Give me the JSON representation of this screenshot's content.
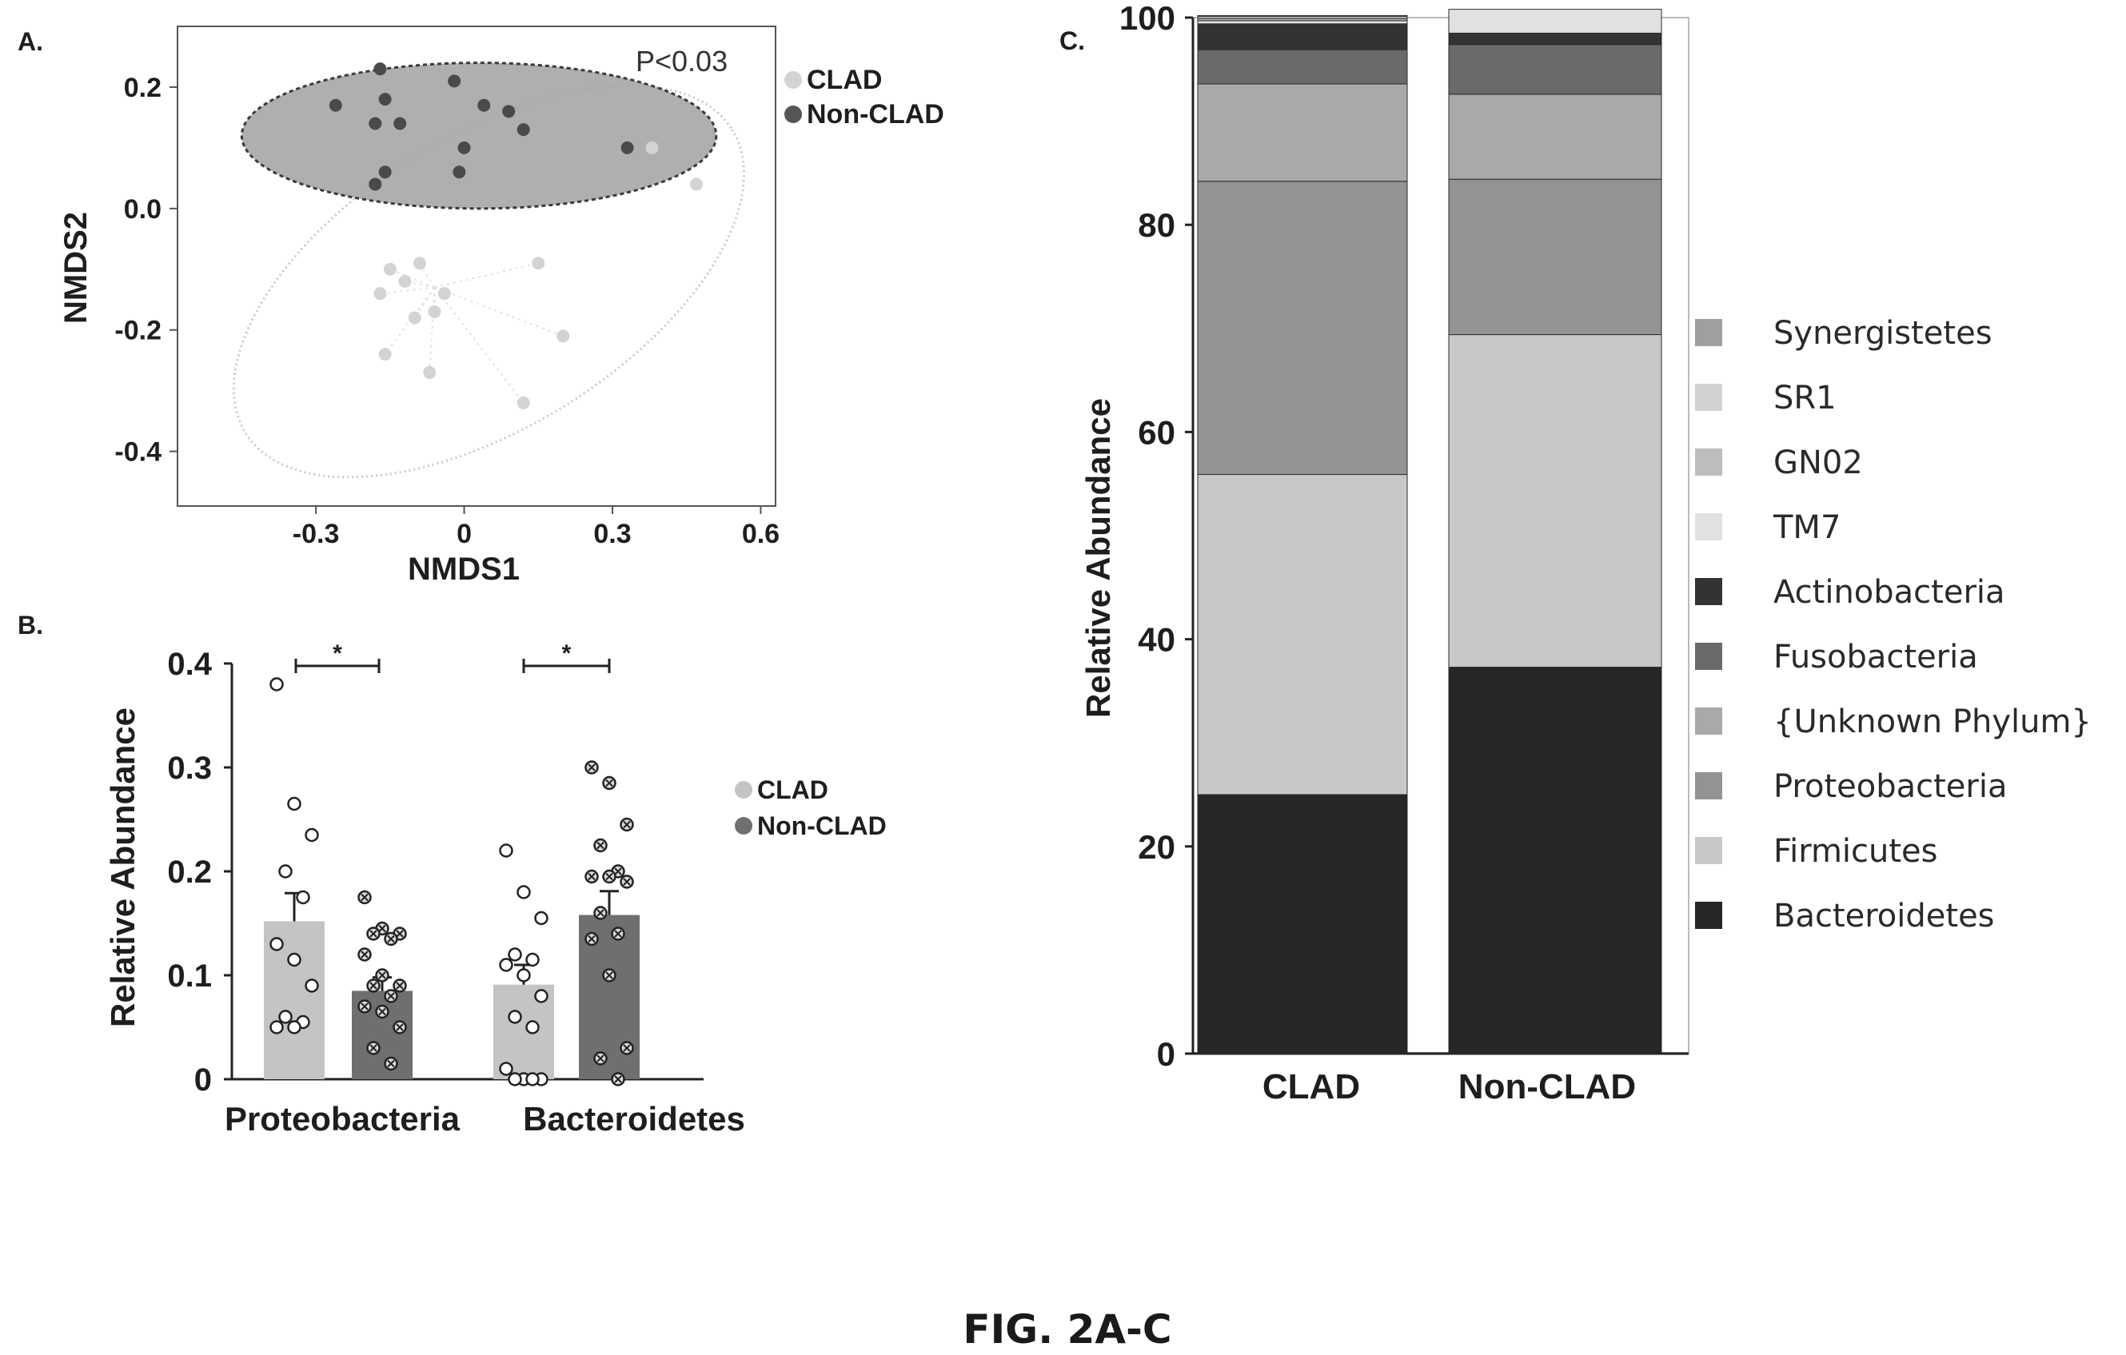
{
  "figure_caption": "FIG. 2A-C",
  "colors": {
    "clad_light": "#d3d3d3",
    "non_clad_dark": "#555555",
    "bar_clad": "#c4c4c4",
    "bar_non_clad": "#6f6f6f",
    "axis": "#222222",
    "background": "#ffffff"
  },
  "chart_data": [
    {
      "panel_label": "A.",
      "type": "scatter",
      "xlabel": "NMDS1",
      "ylabel": "NMDS2",
      "xticks": [
        "-0.3",
        "0",
        "0.3",
        "0.6"
      ],
      "yticks": [
        "0.2",
        "0.0",
        "-0.2",
        "-0.4"
      ],
      "xlim": [
        -0.58,
        0.63
      ],
      "ylim": [
        -0.49,
        0.3
      ],
      "annotation": "P<0.03",
      "legend": [
        "CLAD",
        "Non-CLAD"
      ],
      "legend_position": "top-right",
      "series": [
        {
          "name": "CLAD",
          "ellipse": {
            "center": [
              0.05,
              -0.12
            ],
            "rx": 0.58,
            "ry": 0.24,
            "angle_deg": -32
          },
          "centroid": [
            -0.06,
            -0.13
          ],
          "points": [
            [
              -0.15,
              -0.1
            ],
            [
              -0.12,
              -0.12
            ],
            [
              -0.17,
              -0.14
            ],
            [
              -0.09,
              -0.09
            ],
            [
              -0.04,
              -0.14
            ],
            [
              -0.06,
              -0.17
            ],
            [
              -0.1,
              -0.18
            ],
            [
              -0.16,
              -0.24
            ],
            [
              -0.07,
              -0.27
            ],
            [
              0.15,
              -0.09
            ],
            [
              0.2,
              -0.21
            ],
            [
              0.12,
              -0.32
            ],
            [
              0.38,
              0.1
            ],
            [
              0.47,
              0.04
            ]
          ]
        },
        {
          "name": "Non-CLAD",
          "ellipse": {
            "center": [
              0.03,
              0.12
            ],
            "rx": 0.48,
            "ry": 0.12,
            "angle_deg": 0
          },
          "points": [
            [
              -0.17,
              0.23
            ],
            [
              -0.26,
              0.17
            ],
            [
              -0.16,
              0.18
            ],
            [
              -0.13,
              0.14
            ],
            [
              -0.18,
              0.14
            ],
            [
              -0.02,
              0.21
            ],
            [
              0.04,
              0.17
            ],
            [
              0.09,
              0.16
            ],
            [
              0.12,
              0.13
            ],
            [
              0.0,
              0.1
            ],
            [
              -0.16,
              0.06
            ],
            [
              -0.18,
              0.04
            ],
            [
              -0.01,
              0.06
            ],
            [
              0.33,
              0.1
            ]
          ]
        }
      ]
    },
    {
      "panel_label": "B.",
      "type": "bar",
      "ylabel": "Relative Abundance",
      "categories": [
        "Proteobacteria",
        "Bacteroidetes"
      ],
      "yticks": [
        "0",
        "0.1",
        "0.2",
        "0.3",
        "0.4"
      ],
      "ylim": [
        0,
        0.4
      ],
      "legend": [
        "CLAD",
        "Non-CLAD"
      ],
      "legend_position": "right",
      "significance": [
        "*",
        "*"
      ],
      "series": [
        {
          "name": "CLAD",
          "values": [
            0.152,
            0.091
          ],
          "errors": [
            0.027,
            0.019
          ],
          "points": [
            [
              0.38,
              0.265,
              0.235,
              0.2,
              0.175,
              0.13,
              0.115,
              0.09,
              0.06,
              0.055,
              0.05,
              0.05
            ],
            [
              0.22,
              0.18,
              0.155,
              0.12,
              0.115,
              0.11,
              0.1,
              0.08,
              0.06,
              0.05,
              0.01,
              0.0,
              0.0,
              0.0,
              0.0
            ]
          ]
        },
        {
          "name": "Non-CLAD",
          "values": [
            0.085,
            0.158
          ],
          "errors": [
            0.013,
            0.023
          ],
          "points": [
            [
              0.175,
              0.145,
              0.14,
              0.14,
              0.135,
              0.12,
              0.1,
              0.09,
              0.09,
              0.08,
              0.07,
              0.065,
              0.05,
              0.03,
              0.015
            ],
            [
              0.3,
              0.285,
              0.245,
              0.225,
              0.2,
              0.195,
              0.195,
              0.19,
              0.16,
              0.14,
              0.135,
              0.1,
              0.03,
              0.02,
              0.0
            ]
          ]
        }
      ]
    },
    {
      "panel_label": "C.",
      "type": "bar",
      "stacked": true,
      "ylabel": "Relative Abundance",
      "categories": [
        "CLAD",
        "Non-CLAD"
      ],
      "yticks": [
        "0",
        "20",
        "40",
        "60",
        "80",
        "100"
      ],
      "ylim": [
        0,
        100
      ],
      "legend_position": "right",
      "series": [
        {
          "name": "Bacteroidetes",
          "color": "#262626",
          "values": [
            25.0,
            37.3
          ]
        },
        {
          "name": "Firmicutes",
          "color": "#c8c8c8",
          "values": [
            30.9,
            32.1
          ]
        },
        {
          "name": "Proteobacteria",
          "color": "#939393",
          "values": [
            28.3,
            15.0
          ]
        },
        {
          "name": "{Unknown Phylum}",
          "color": "#a9a9a9",
          "values": [
            9.4,
            8.2
          ]
        },
        {
          "name": "Fusobacteria",
          "color": "#6a6a6a",
          "values": [
            3.3,
            4.8
          ]
        },
        {
          "name": "Actinobacteria",
          "color": "#333333",
          "values": [
            2.5,
            1.1
          ]
        },
        {
          "name": "TM7",
          "color": "#e1e1e1",
          "values": [
            0.3,
            2.3
          ]
        },
        {
          "name": "GN02",
          "color": "#bdbdbd",
          "values": [
            0.2,
            0.0
          ]
        },
        {
          "name": "SR1",
          "color": "#d2d2d2",
          "values": [
            0.2,
            0.0
          ]
        },
        {
          "name": "Synergistetes",
          "color": "#9f9f9f",
          "values": [
            0.1,
            0.0
          ]
        }
      ],
      "legend": [
        "Synergistetes",
        "SR1",
        "GN02",
        "TM7",
        "Actinobacteria",
        "Fusobacteria",
        "{Unknown Phylum}",
        "Proteobacteria",
        "Firmicutes",
        "Bacteroidetes"
      ]
    }
  ]
}
